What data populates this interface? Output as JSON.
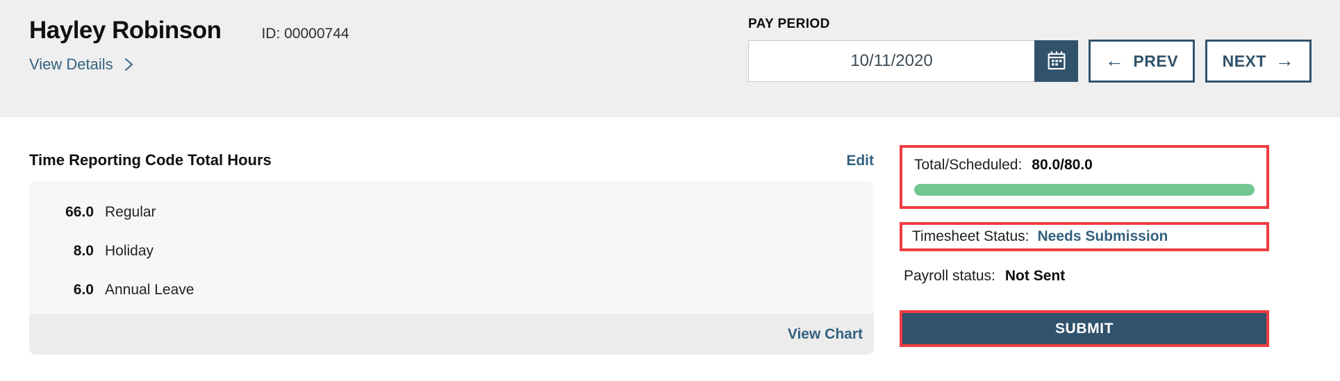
{
  "header": {
    "name": "Hayley Robinson",
    "id_text": "ID: 00000744",
    "view_details_label": "View Details",
    "pay_period": {
      "label": "PAY PERIOD",
      "date_value": "10/11/2020",
      "prev_label": "PREV",
      "prev_arrow": "←",
      "next_label": "NEXT",
      "next_arrow": "→",
      "calendar_icon": "calendar-icon"
    }
  },
  "main": {
    "trc": {
      "title": "Time Reporting Code Total Hours",
      "edit_label": "Edit",
      "rows": [
        {
          "hours": "66.0",
          "label": "Regular"
        },
        {
          "hours": "8.0",
          "label": "Holiday"
        },
        {
          "hours": "6.0",
          "label": "Annual Leave"
        }
      ],
      "view_chart_label": "View Chart"
    },
    "summary": {
      "total_scheduled_label": "Total/Scheduled:",
      "total_scheduled_value": "80.0/80.0",
      "progress_percent": 100,
      "timesheet_status_label": "Timesheet Status:",
      "timesheet_status_value": "Needs Submission",
      "payroll_status_label": "Payroll status:",
      "payroll_status_value": "Not Sent",
      "submit_label": "SUBMIT"
    }
  },
  "colors": {
    "header_bg": "#efeff0",
    "accent_navy": "#31526b",
    "link_blue": "#33617e",
    "highlight_red": "#f03b41",
    "progress_green": "#73c792",
    "panel_bg": "#f7f7f7",
    "panel_footer_bg": "#ececec"
  }
}
